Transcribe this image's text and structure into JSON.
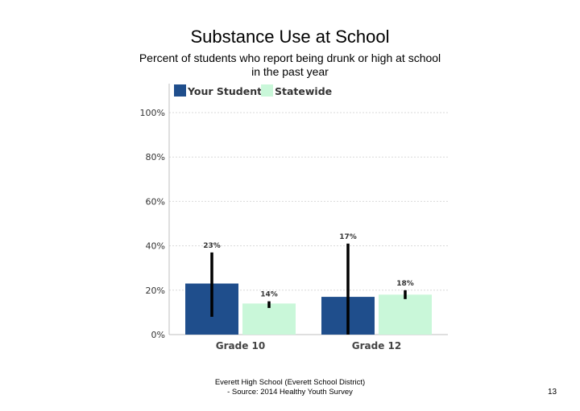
{
  "title": "Substance Use at School",
  "subtitle_line1": "Percent of students who report being drunk or high at school",
  "subtitle_line2": "in the past year",
  "footer_line1": "Everett High School (Everett School District)",
  "footer_line2": "- Source: 2014 Healthy Youth Survey",
  "page_number": "13",
  "colors": {
    "your_students": "#1f4e8c",
    "statewide": "#c9f7d9",
    "error_bar": "#000000",
    "grid": "#d9d9d9"
  },
  "chart_data": {
    "type": "bar",
    "categories": [
      "Grade 10",
      "Grade 12"
    ],
    "series": [
      {
        "name": "Your Students",
        "values": [
          23,
          17
        ],
        "labels": [
          "23%",
          "17%"
        ],
        "error_low": [
          8,
          0
        ],
        "error_high": [
          37,
          41
        ]
      },
      {
        "name": "Statewide",
        "values": [
          14,
          18
        ],
        "labels": [
          "14%",
          "18%"
        ],
        "error_low": [
          12,
          16
        ],
        "error_high": [
          15,
          20
        ]
      }
    ],
    "yticks": [
      "0%",
      "20%",
      "40%",
      "60%",
      "80%",
      "100%"
    ],
    "ylim": [
      0,
      100
    ],
    "grid": true,
    "legend": "top"
  }
}
